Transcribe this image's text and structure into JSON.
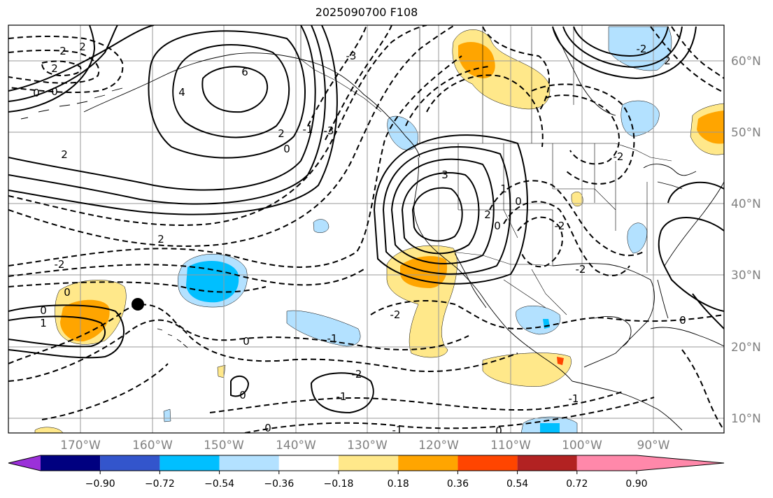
{
  "title": "2025090700 F108",
  "map": {
    "lon_range": [
      -180,
      -80
    ],
    "lat_range": [
      8,
      65
    ],
    "lon_ticks": [
      "170°W",
      "160°W",
      "150°W",
      "140°W",
      "130°W",
      "120°W",
      "110°W",
      "100°W",
      "90°W"
    ],
    "lat_ticks": [
      "60°N",
      "50°N",
      "40°N",
      "30°N",
      "20°N",
      "10°N"
    ],
    "contour_labels": [
      "2",
      "2",
      "2",
      "0",
      "0",
      "2",
      "2",
      "-2",
      "-2",
      "0",
      "0",
      "1",
      "6",
      "4",
      "2",
      "0",
      "-1",
      "-3",
      "-3",
      "3",
      "2",
      "1",
      "0",
      "0",
      "-2",
      "0",
      "-2",
      "-2",
      "-1",
      "0",
      "-2",
      "-1",
      "0",
      "-1",
      "0",
      "-1",
      "0",
      "-2",
      "2"
    ],
    "marker": {
      "lon": -162,
      "lat": 26
    }
  },
  "colorbar": {
    "colors": [
      "#9b30d9",
      "#000080",
      "#3355cc",
      "#00bfff",
      "#b3e1ff",
      "#ffffff",
      "#ffe88a",
      "#ffa500",
      "#ff4500",
      "#b22222",
      "#ff88aa"
    ],
    "tick_labels": [
      "−0.90",
      "−0.72",
      "−0.54",
      "−0.36",
      "−0.18",
      "0.18",
      "0.36",
      "0.54",
      "0.72",
      "0.90"
    ]
  }
}
